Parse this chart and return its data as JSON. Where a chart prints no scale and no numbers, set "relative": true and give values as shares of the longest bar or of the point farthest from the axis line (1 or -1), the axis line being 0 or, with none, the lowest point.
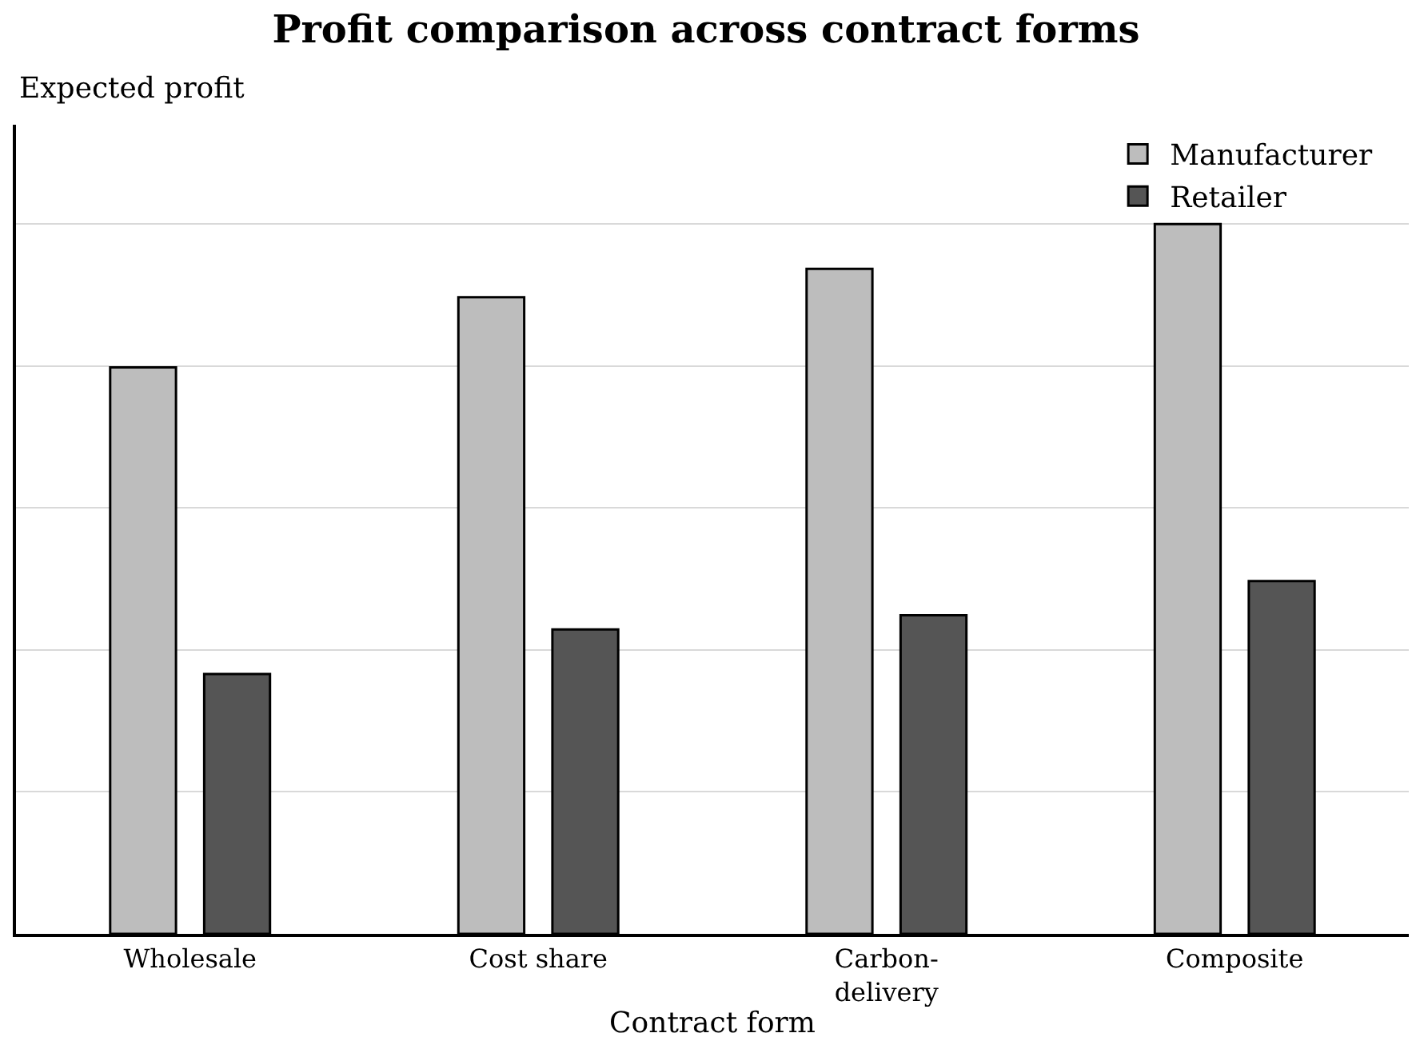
{
  "chart_data": {
    "type": "bar",
    "title": "Profit comparison across contract forms",
    "xlabel": "Contract form",
    "ylabel": "Expected profit",
    "categories": [
      "Wholesale",
      "Cost share",
      "Carbon-\ndelivery",
      "Composite"
    ],
    "relative": true,
    "grid": "y",
    "legend": "top right",
    "series": [
      {
        "name": "Manufacturer",
        "color": "#bdbdbd",
        "values": [
          0.798,
          0.897,
          0.937,
          1
        ]
      },
      {
        "name": "Retailer",
        "color": "#555555",
        "values": [
          0.366,
          0.429,
          0.449,
          0.497
        ]
      }
    ]
  }
}
